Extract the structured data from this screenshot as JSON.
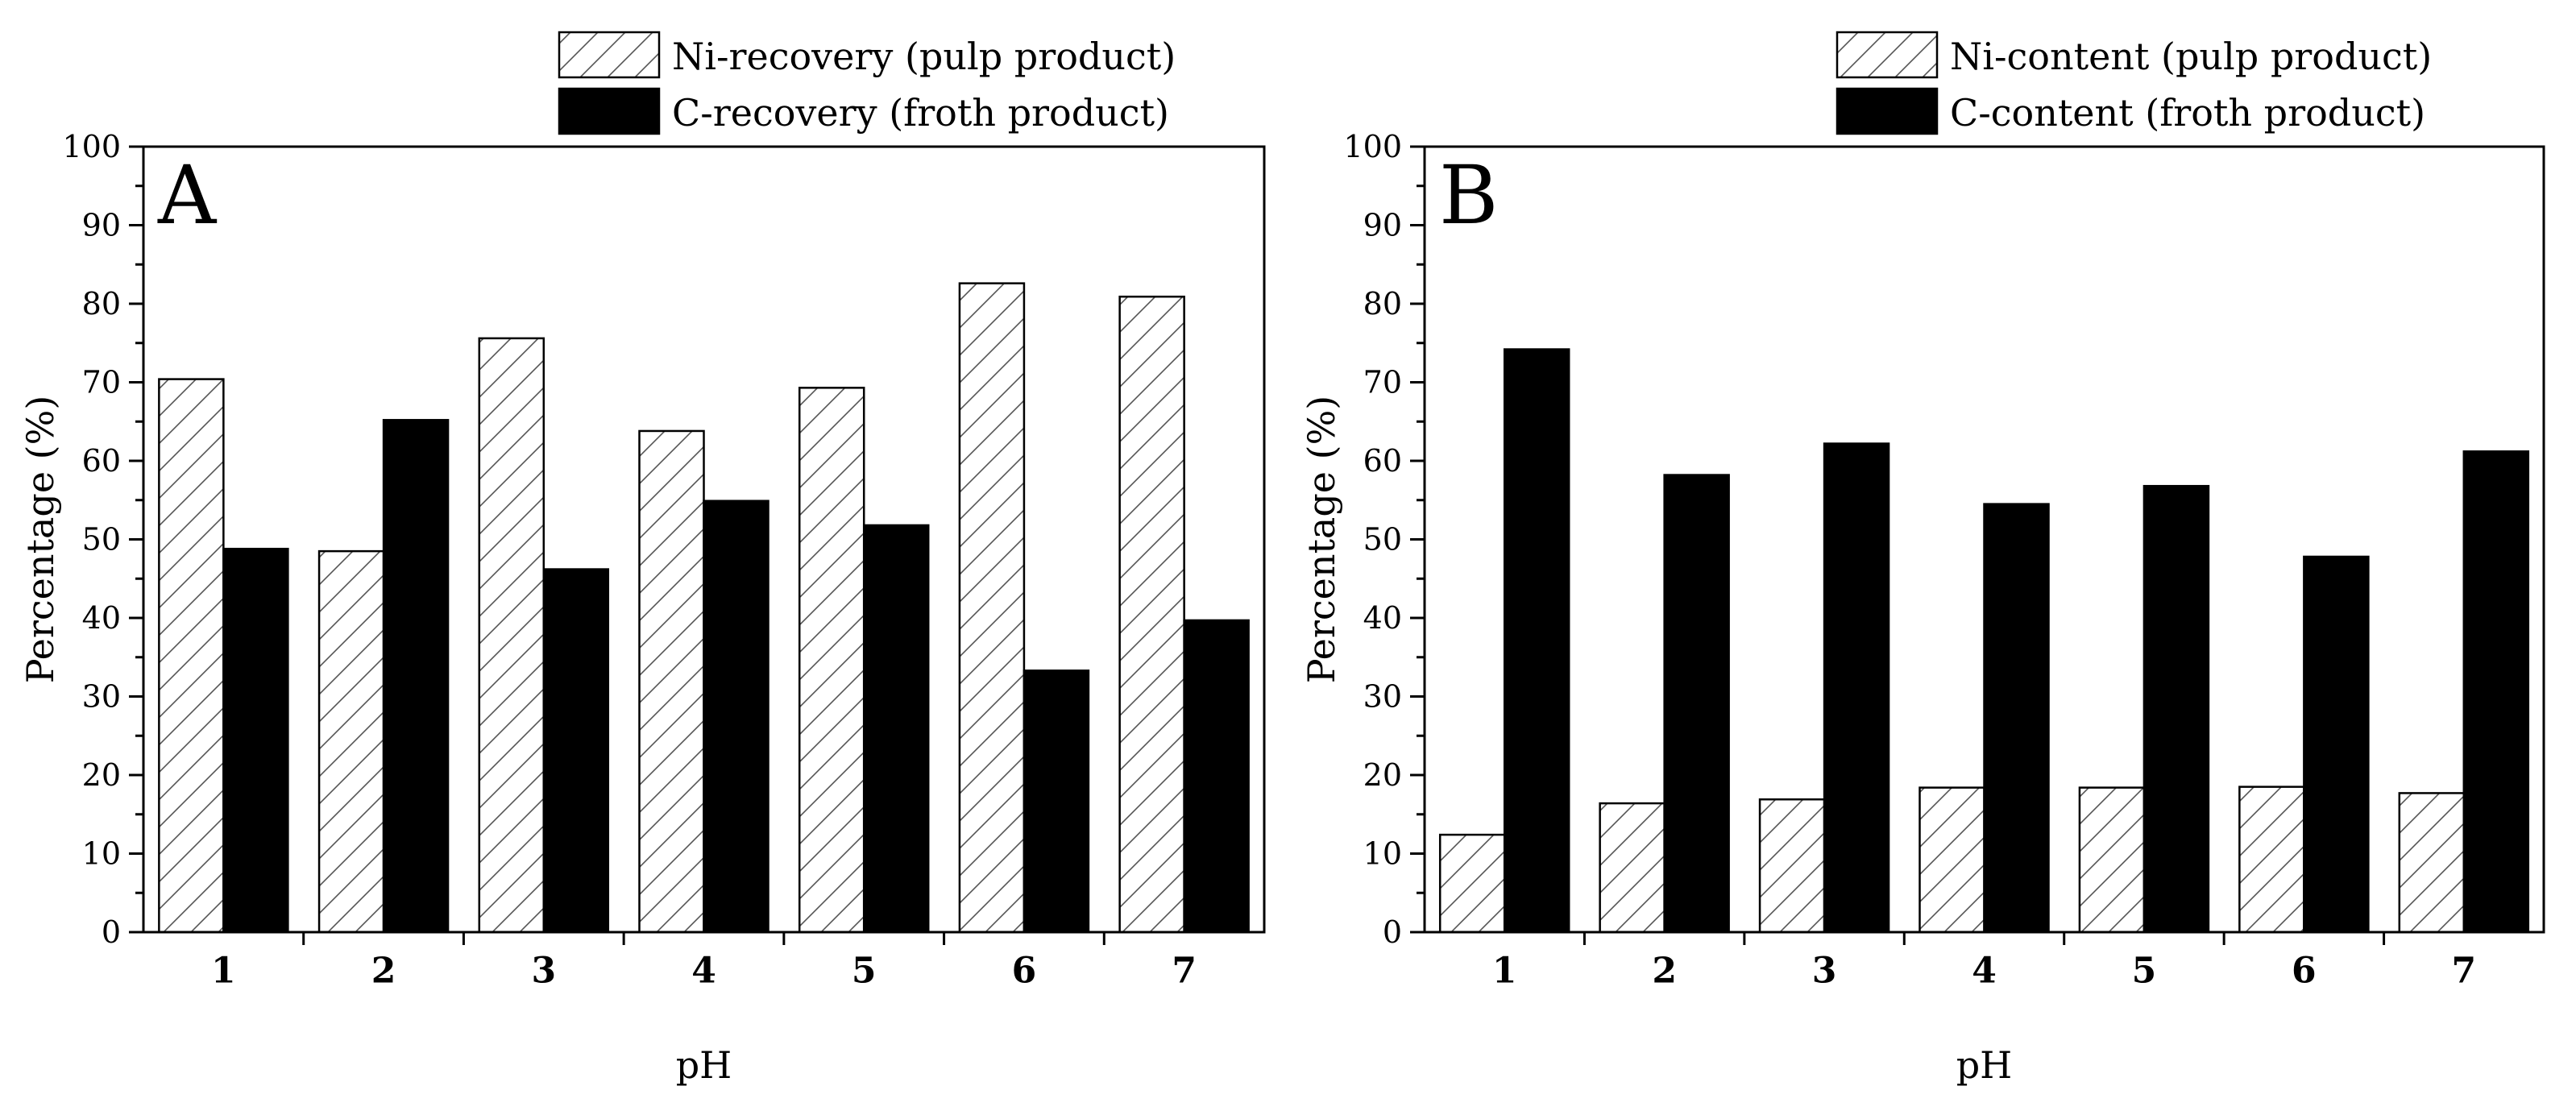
{
  "chart_data": [
    {
      "type": "bar",
      "panel_label": "A",
      "xlabel": "pH",
      "ylabel": "Percentage (%)",
      "ylim": [
        0,
        100
      ],
      "yticks": [
        "0",
        "10",
        "20",
        "30",
        "40",
        "50",
        "60",
        "70",
        "80",
        "90",
        "100"
      ],
      "categories": [
        "1",
        "2",
        "3",
        "4",
        "5",
        "6",
        "7"
      ],
      "legend_position": "top",
      "series": [
        {
          "name": "Ni-recovery (pulp product)",
          "fill": "hatched",
          "values": [
            70.4,
            48.5,
            75.6,
            63.8,
            69.3,
            82.6,
            80.9
          ]
        },
        {
          "name": "C-recovery (froth product)",
          "fill": "#000000",
          "values": [
            48.8,
            65.2,
            46.2,
            54.9,
            51.8,
            33.3,
            39.7
          ]
        }
      ]
    },
    {
      "type": "bar",
      "panel_label": "B",
      "xlabel": "pH",
      "ylabel": "Percentage (%)",
      "ylim": [
        0,
        100
      ],
      "yticks": [
        "0",
        "10",
        "20",
        "30",
        "40",
        "50",
        "60",
        "70",
        "80",
        "90",
        "100"
      ],
      "categories": [
        "1",
        "2",
        "3",
        "4",
        "5",
        "6",
        "7"
      ],
      "legend_position": "top",
      "series": [
        {
          "name": "Ni-content (pulp product)",
          "fill": "hatched",
          "values": [
            12.4,
            16.4,
            16.9,
            18.4,
            18.4,
            18.5,
            17.7
          ]
        },
        {
          "name": "C-content (froth product)",
          "fill": "#000000",
          "values": [
            74.2,
            58.2,
            62.2,
            54.5,
            56.8,
            47.8,
            61.2
          ]
        }
      ]
    }
  ]
}
